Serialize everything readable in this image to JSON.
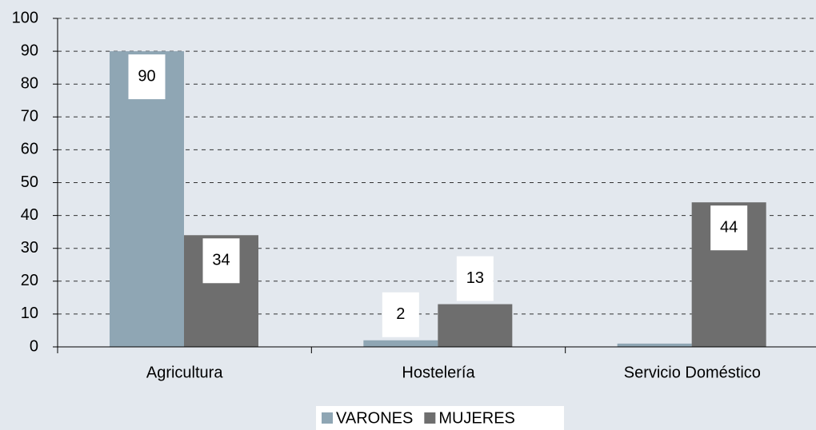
{
  "chart_data": {
    "type": "bar",
    "categories": [
      "Agricultura",
      "Hostelería",
      "Servicio Doméstico"
    ],
    "series": [
      {
        "name": "VARONES",
        "color": "#8fa6b4",
        "values": [
          90,
          2,
          1
        ],
        "value_labels": [
          "90",
          "2",
          null
        ]
      },
      {
        "name": "MUJERES",
        "color": "#6e6e6e",
        "values": [
          34,
          13,
          44
        ],
        "value_labels": [
          "34",
          "13",
          "44"
        ]
      }
    ],
    "ylim": [
      0,
      100
    ],
    "yticks": [
      0,
      10,
      20,
      30,
      40,
      50,
      60,
      70,
      80,
      90,
      100
    ],
    "grid": true,
    "legend": "bottom"
  }
}
